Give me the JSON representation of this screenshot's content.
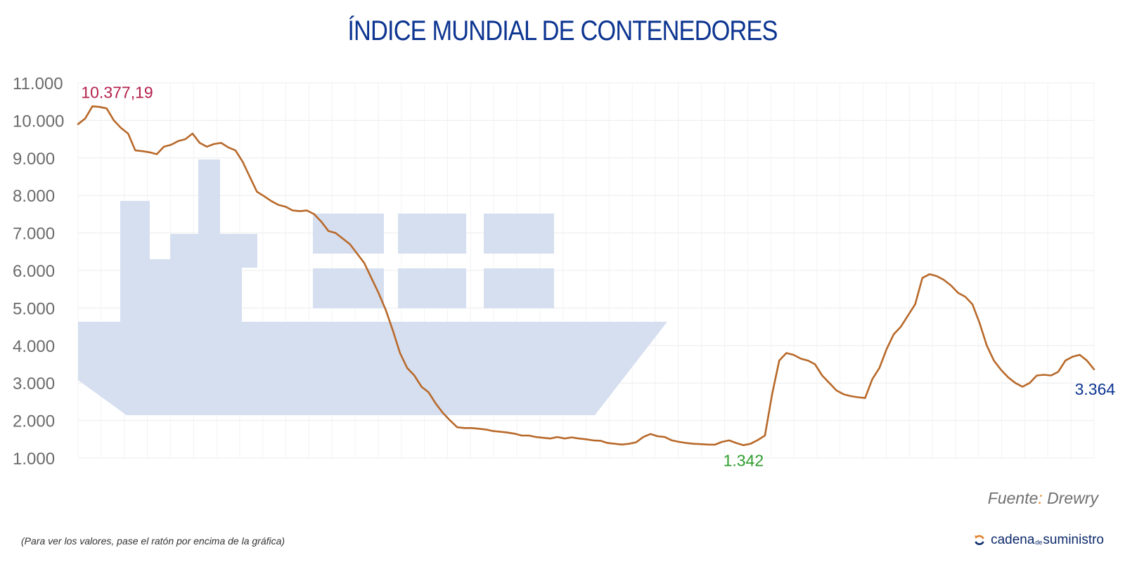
{
  "colors": {
    "title": "#0d3591",
    "line": "#b8692a",
    "ship": "#d6dff0",
    "grid": "#ececec",
    "max_label": "#b5214d",
    "min_label": "#2e9e2e",
    "last_label": "#0d3591"
  },
  "footer": {
    "source_prefix": "Fuente",
    "source_colon": ":",
    "source_name": " Drewry",
    "note": "(Para ver los valores, pase el ratón por encima de la gráfica)",
    "logo_part1": "cadena",
    "logo_part2": "de",
    "logo_part3": "suministro",
    "logo_icon": "refresh-arrows-icon"
  },
  "decoration": {
    "background_icon": "container-ship-icon"
  },
  "chart_data": {
    "type": "line",
    "title": "ÍNDICE MUNDIAL DE CONTENEDORES",
    "xlabel": "",
    "ylabel": "",
    "ylim": [
      1000,
      11000
    ],
    "yticks": [
      1000,
      2000,
      3000,
      4000,
      5000,
      6000,
      7000,
      8000,
      9000,
      10000,
      11000
    ],
    "ytick_labels": [
      "1.000",
      "2.000",
      "3.000",
      "4.000",
      "5.000",
      "6.000",
      "7.000",
      "8.000",
      "9.000",
      "10.000",
      "11.000"
    ],
    "grid": true,
    "series": [
      {
        "values": [
          9900,
          10050,
          10377.19,
          10360,
          10320,
          10000,
          9800,
          9650,
          9200,
          9180,
          9150,
          9100,
          9300,
          9350,
          9450,
          9500,
          9650,
          9400,
          9300,
          9370,
          9400,
          9280,
          9200,
          8900,
          8500,
          8100,
          7980,
          7850,
          7750,
          7700,
          7600,
          7580,
          7600,
          7500,
          7300,
          7050,
          7000,
          6850,
          6700,
          6450,
          6200,
          5800,
          5400,
          4950,
          4400,
          3800,
          3400,
          3200,
          2900,
          2750,
          2450,
          2200,
          2000,
          1820,
          1800,
          1800,
          1780,
          1760,
          1720,
          1700,
          1680,
          1650,
          1600,
          1600,
          1560,
          1540,
          1520,
          1560,
          1520,
          1550,
          1520,
          1500,
          1470,
          1460,
          1400,
          1380,
          1360,
          1380,
          1420,
          1560,
          1640,
          1580,
          1560,
          1470,
          1430,
          1400,
          1380,
          1370,
          1360,
          1355,
          1430,
          1470,
          1400,
          1342,
          1380,
          1480,
          1600,
          2700,
          3600,
          3800,
          3750,
          3650,
          3600,
          3500,
          3200,
          3000,
          2800,
          2700,
          2650,
          2620,
          2600,
          3100,
          3400,
          3900,
          4300,
          4500,
          4800,
          5100,
          5800,
          5900,
          5850,
          5750,
          5600,
          5400,
          5300,
          5100,
          4600,
          4000,
          3600,
          3350,
          3150,
          3000,
          2900,
          3000,
          3200,
          3220,
          3200,
          3300,
          3600,
          3700,
          3750,
          3600,
          3364
        ],
        "color": "#b8692a"
      }
    ],
    "annotations": [
      {
        "label": "10.377,19",
        "index": 2,
        "value": 10377.19,
        "color": "#b5214d"
      },
      {
        "label": "1.342",
        "index": 93,
        "value": 1342,
        "color": "#2e9e2e"
      },
      {
        "label": "3.364",
        "index": 143,
        "value": 3364,
        "color": "#0d3591"
      }
    ]
  }
}
